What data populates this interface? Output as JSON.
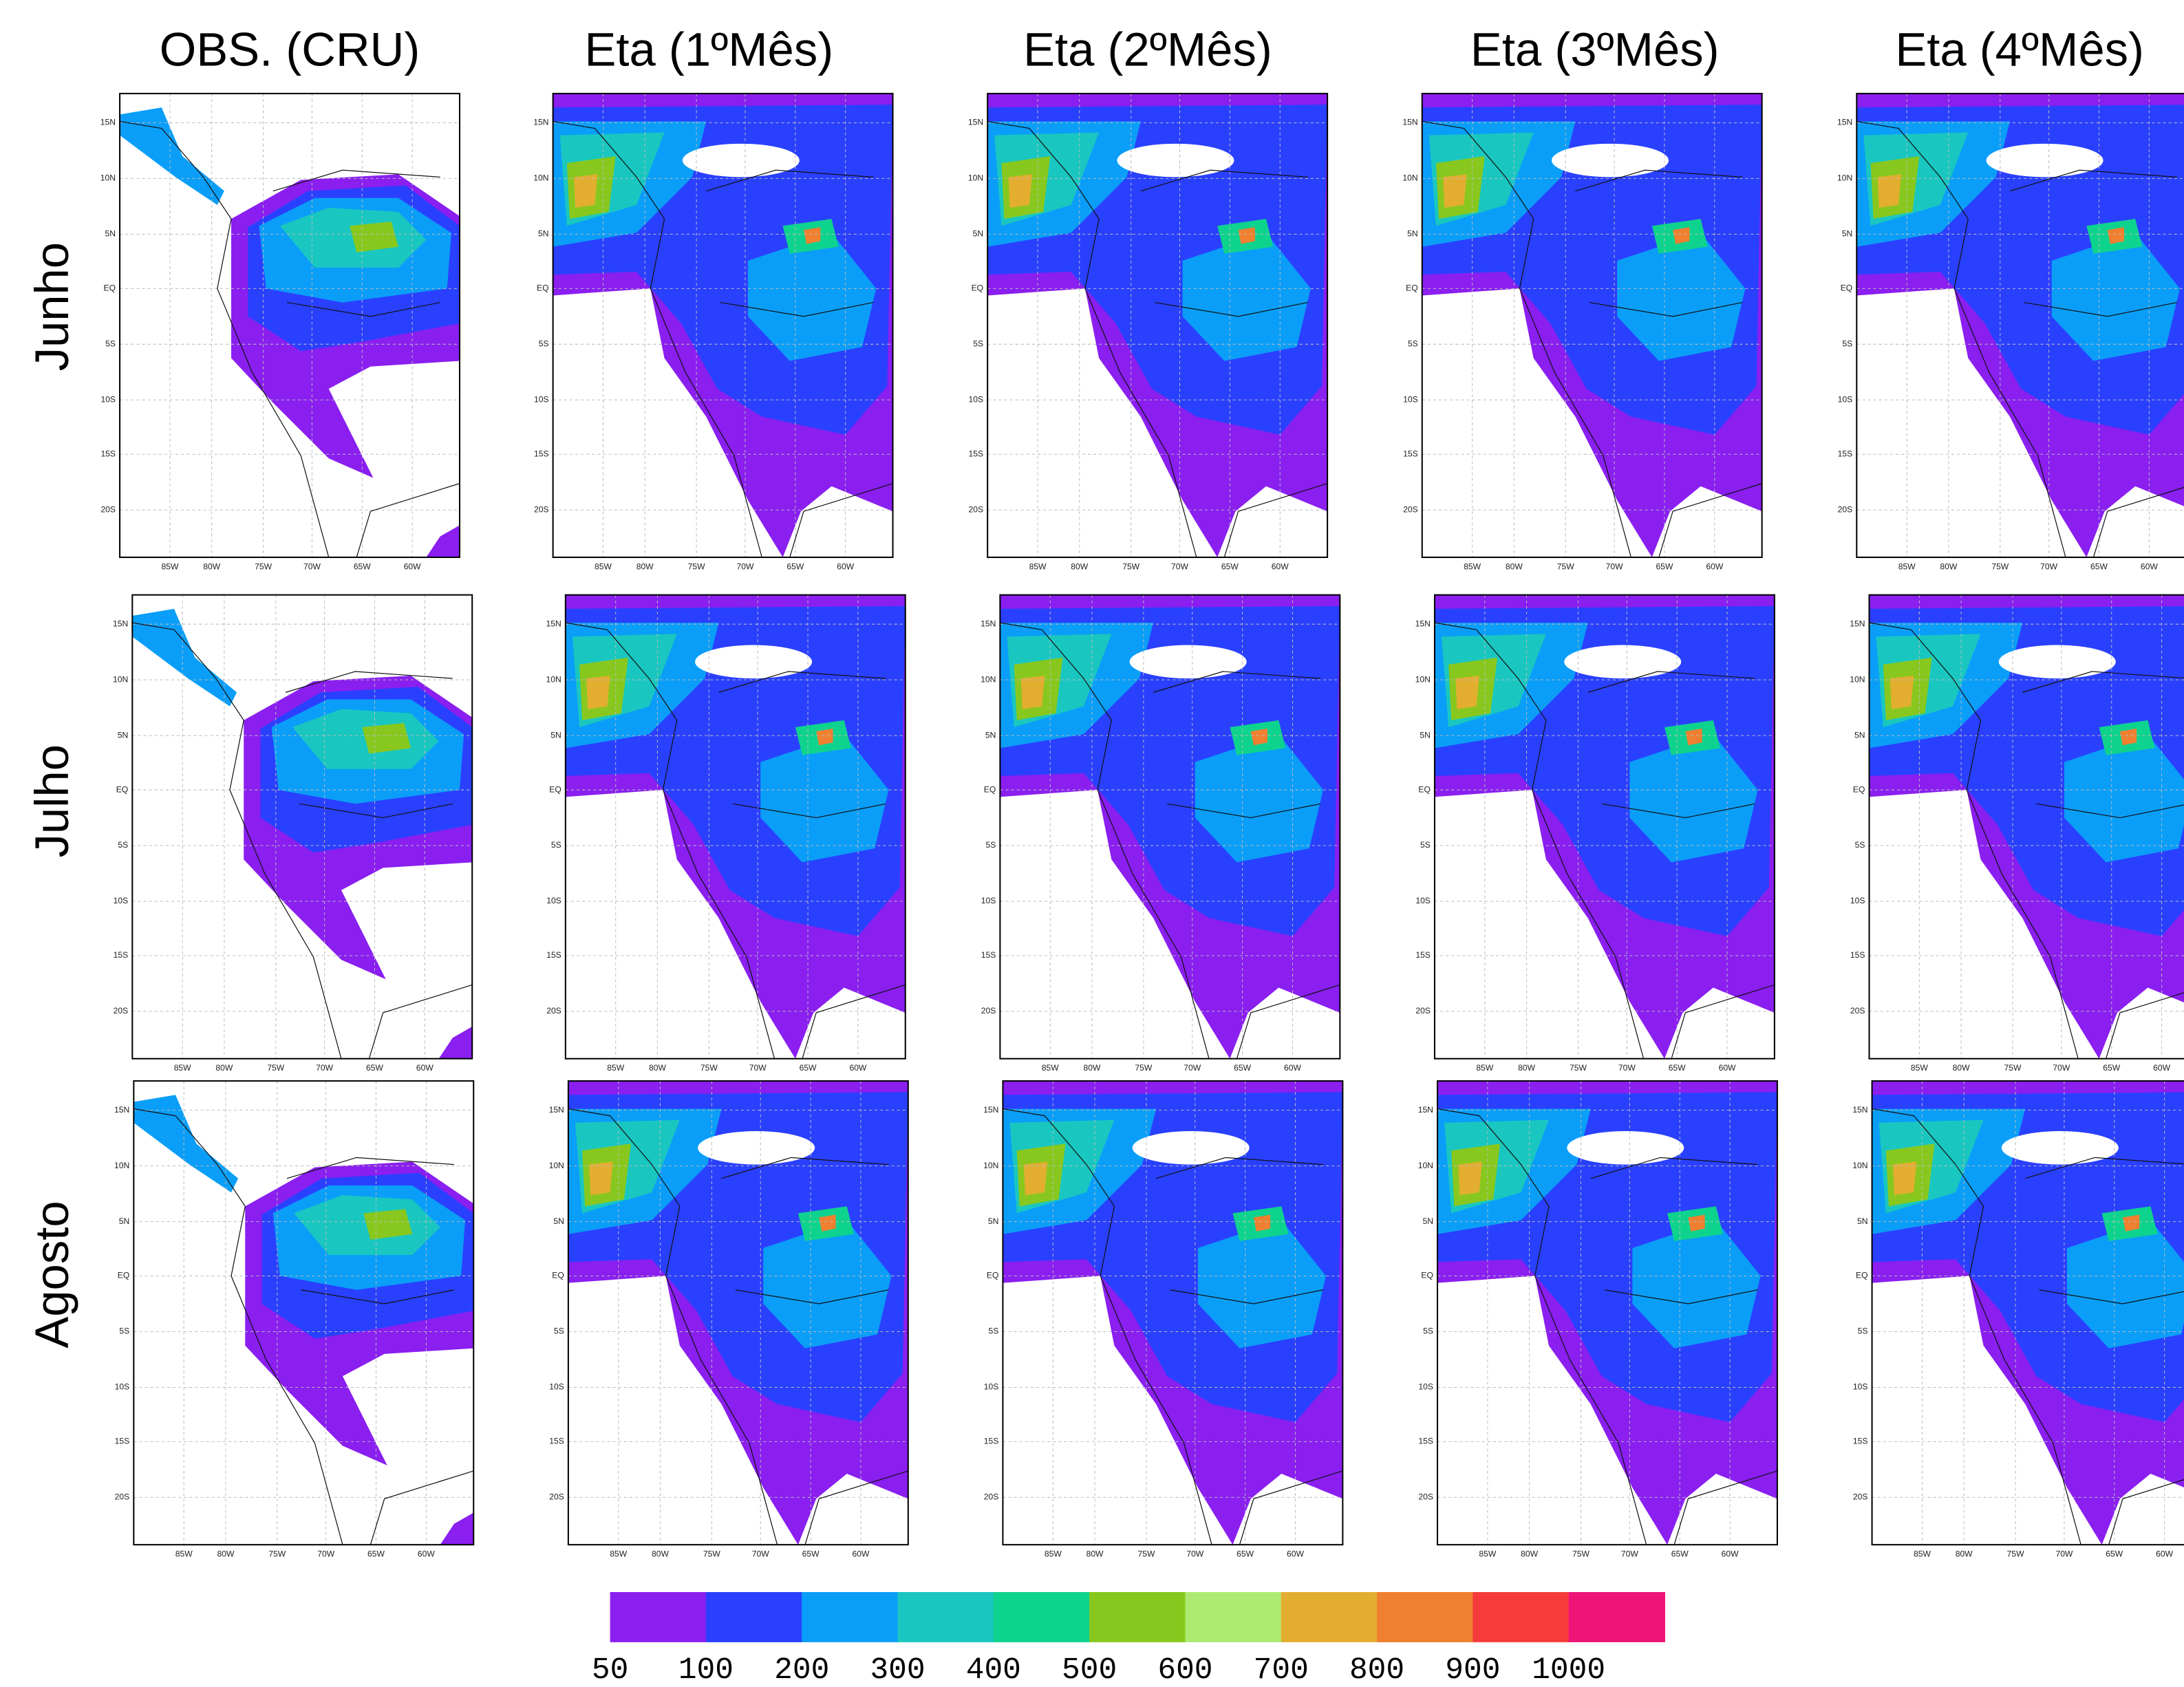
{
  "columns": [
    "OBS. (CRU)",
    "Eta (1ºMês)",
    "Eta (2ºMês)",
    "Eta (3ºMês)",
    "Eta (4ºMês)"
  ],
  "rows": [
    "Junho",
    "Julho",
    "Agosto"
  ],
  "lat_labels": [
    "15N",
    "10N",
    "5N",
    "EQ",
    "5S",
    "10S",
    "15S",
    "20S"
  ],
  "lon_labels": [
    "85W",
    "80W",
    "75W",
    "70W",
    "65W",
    "60W"
  ],
  "colorbar": {
    "levels": [
      50,
      100,
      200,
      300,
      400,
      500,
      600,
      700,
      800,
      900,
      1000
    ],
    "colors": [
      "#8a1ff0",
      "#2a40ff",
      "#0a9ef8",
      "#19c7c0",
      "#0ed38e",
      "#88c81e",
      "#aeea72",
      "#e3ae30",
      "#ef8030",
      "#f53c3a",
      "#ee1478"
    ]
  }
}
